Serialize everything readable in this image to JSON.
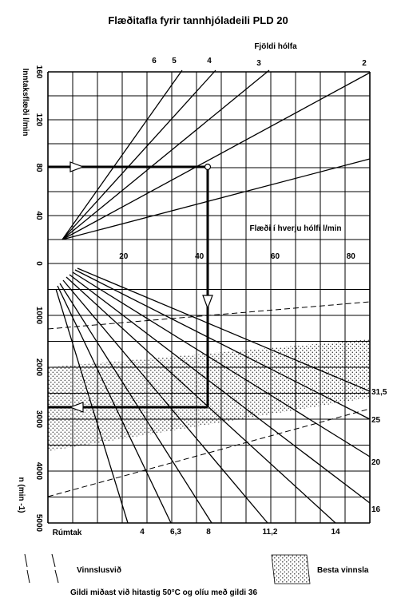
{
  "title": "Flæðitafla fyrir tannhjóladeili PLD 20",
  "footer_note": "Gildi miðast við hitastig 50°C og olíu með gildi 36",
  "legend": {
    "operating_range_label": "Vinnslusvið",
    "best_efficiency_label": "Besta vinnsla"
  },
  "chart_data": {
    "type": "nomogram",
    "upper": {
      "ylabel": "Inntaksflæði l/min",
      "yticks": [
        160,
        120,
        80,
        40,
        0
      ],
      "ylim": [
        0,
        160
      ],
      "xlabel": "Flæði í hverju hólfi l/min",
      "xticks": [
        20,
        40,
        60,
        80
      ],
      "xlim": [
        0,
        85
      ],
      "top_axis_label": "Fjöldi hólfa",
      "section_lines": [
        {
          "name": "6",
          "sections": 6
        },
        {
          "name": "5",
          "sections": 5
        },
        {
          "name": "4",
          "sections": 4
        },
        {
          "name": "3",
          "sections": 3
        },
        {
          "name": "2",
          "sections": 2
        }
      ],
      "example_point": {
        "inlet_flow": 80,
        "sections": 4,
        "flow_per_section": 40
      }
    },
    "lower": {
      "ylabel": "n (min -1)",
      "yticks": [
        0,
        1000,
        2000,
        3000,
        4000,
        5000
      ],
      "ylim": [
        0,
        5000
      ],
      "xlabel": "Rúmtak",
      "displacement_lines": [
        {
          "name": "4",
          "value": 4
        },
        {
          "name": "6,3",
          "value": 6.3
        },
        {
          "name": "8",
          "value": 8
        },
        {
          "name": "11,2",
          "value": 11.2
        },
        {
          "name": "14",
          "value": 14
        },
        {
          "name": "16",
          "value": 16
        },
        {
          "name": "20",
          "value": 20
        },
        {
          "name": "25",
          "value": 25
        },
        {
          "name": "31,5",
          "value": 31.5
        }
      ],
      "example_speed": 2700
    },
    "grid": true
  }
}
